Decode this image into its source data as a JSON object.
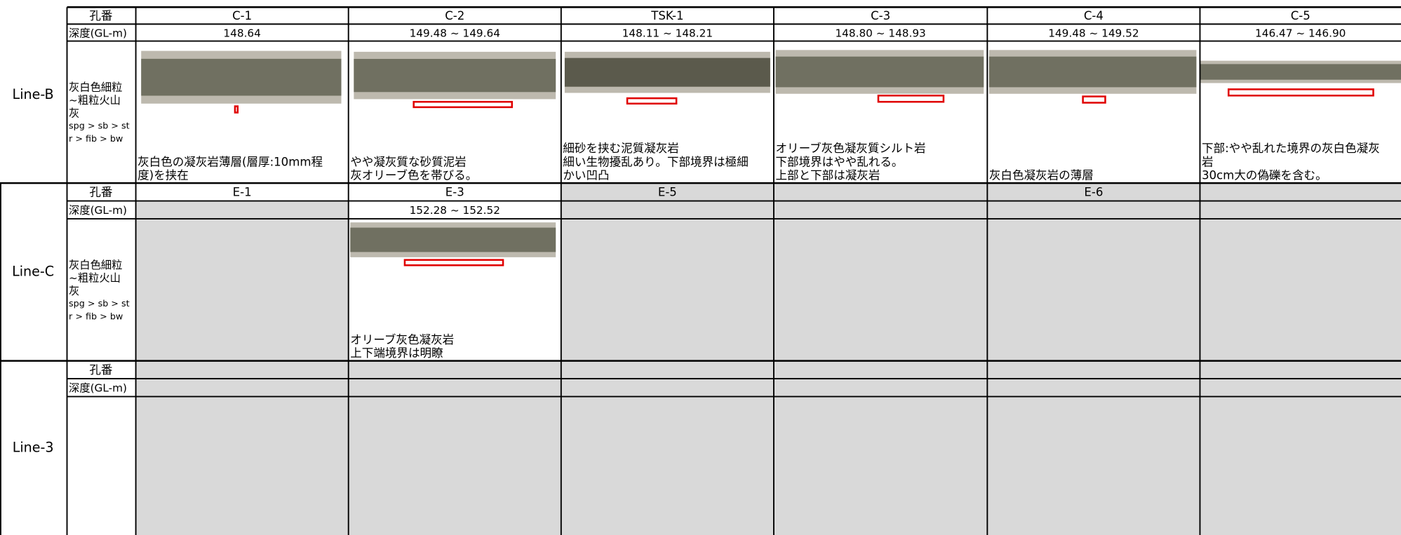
{
  "sections": [
    {
      "line": "Line-B",
      "id_label": "孔番",
      "depth_label": "深度(GL-m)",
      "description": [
        "灰白色細粒",
        "~粗粒火山",
        "灰",
        "spg > sb > st",
        "r > fib > bw"
      ],
      "cells": [
        {
          "id": "C-1",
          "depth": "148.64",
          "note": [
            "灰白色の凝灰岩薄層(層厚:10mm程",
            "度)を挟在"
          ]
        },
        {
          "id": "C-2",
          "depth": "149.48 ~ 149.64",
          "note": [
            "やや凝灰質な砂質泥岩",
            "灰オリーブ色を帯びる。"
          ]
        },
        {
          "id": "TSK-1",
          "depth": "148.11 ~ 148.21",
          "note": [
            "細砂を挟む泥質凝灰岩",
            "細い生物擾乱あり。下部境界は極細",
            "かい凹凸"
          ]
        },
        {
          "id": "C-3",
          "depth": "148.80 ~ 148.93",
          "note": [
            "オリーブ灰色凝灰質シルト岩",
            "下部境界はやや乱れる。",
            "上部と下部は凝灰岩"
          ]
        },
        {
          "id": "C-4",
          "depth": "149.48 ~ 149.52",
          "note": [
            "灰白色凝灰岩の薄層"
          ]
        },
        {
          "id": "C-5",
          "depth": "146.47 ~ 146.90",
          "note": [
            "下部:やや乱れた境界の灰白色凝灰",
            "岩",
            "30cm大の偽礫を含む。"
          ]
        }
      ]
    },
    {
      "line": "Line-C",
      "id_label": "孔番",
      "depth_label": "深度(GL-m)",
      "description": [
        "灰白色細粒",
        "~粗粒火山",
        "灰",
        "spg > sb > st",
        "r > fib > bw"
      ],
      "cells": [
        {
          "id": "E-1"
        },
        {
          "id": "E-3",
          "depth": "152.28 ~ 152.52",
          "note": [
            "オリーブ灰色凝灰岩",
            "上下端境界は明瞭"
          ]
        },
        {
          "id": "E-5"
        },
        {},
        {
          "id": "E-6"
        },
        {}
      ]
    },
    {
      "line": "Line-3",
      "id_label": "孔番",
      "depth_label": "深度(GL-m)",
      "cells": [
        {},
        {},
        {},
        {},
        {},
        {}
      ]
    }
  ]
}
